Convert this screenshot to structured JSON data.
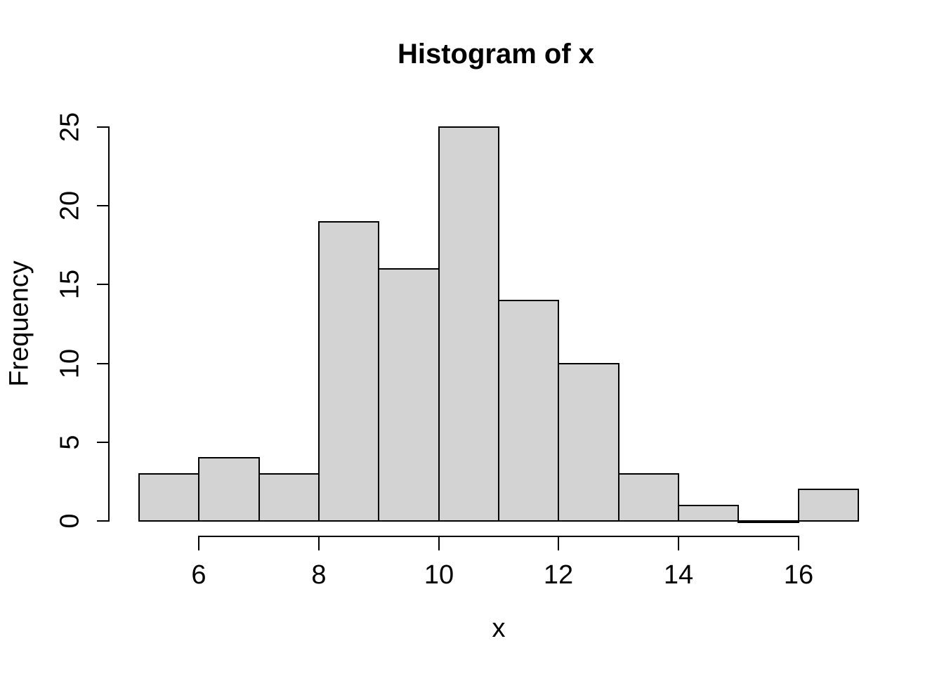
{
  "chart_data": {
    "type": "bar",
    "subtype": "histogram",
    "title": "Histogram of x",
    "xlabel": "x",
    "ylabel": "Frequency",
    "breaks": [
      5,
      6,
      7,
      8,
      9,
      10,
      11,
      12,
      13,
      14,
      15,
      16,
      17
    ],
    "counts": [
      3,
      4,
      3,
      19,
      16,
      25,
      14,
      10,
      3,
      1,
      0,
      2
    ],
    "bins": [
      {
        "range": [
          5,
          6
        ],
        "count": 3
      },
      {
        "range": [
          6,
          7
        ],
        "count": 4
      },
      {
        "range": [
          7,
          8
        ],
        "count": 3
      },
      {
        "range": [
          8,
          9
        ],
        "count": 19
      },
      {
        "range": [
          9,
          10
        ],
        "count": 16
      },
      {
        "range": [
          10,
          11
        ],
        "count": 25
      },
      {
        "range": [
          11,
          12
        ],
        "count": 14
      },
      {
        "range": [
          12,
          13
        ],
        "count": 10
      },
      {
        "range": [
          13,
          14
        ],
        "count": 3
      },
      {
        "range": [
          14,
          15
        ],
        "count": 1
      },
      {
        "range": [
          15,
          16
        ],
        "count": 0
      },
      {
        "range": [
          16,
          17
        ],
        "count": 2
      }
    ],
    "x_ticks": [
      6,
      8,
      10,
      12,
      14,
      16
    ],
    "y_ticks": [
      0,
      5,
      10,
      15,
      20,
      25
    ],
    "xlim": [
      5,
      17
    ],
    "ylim": [
      0,
      25
    ],
    "grid": "off",
    "legend": "none",
    "colors": {
      "bar_fill": "#d3d3d3",
      "bar_border": "#000000",
      "axis": "#000000",
      "text": "#000000",
      "background": "#ffffff"
    }
  }
}
